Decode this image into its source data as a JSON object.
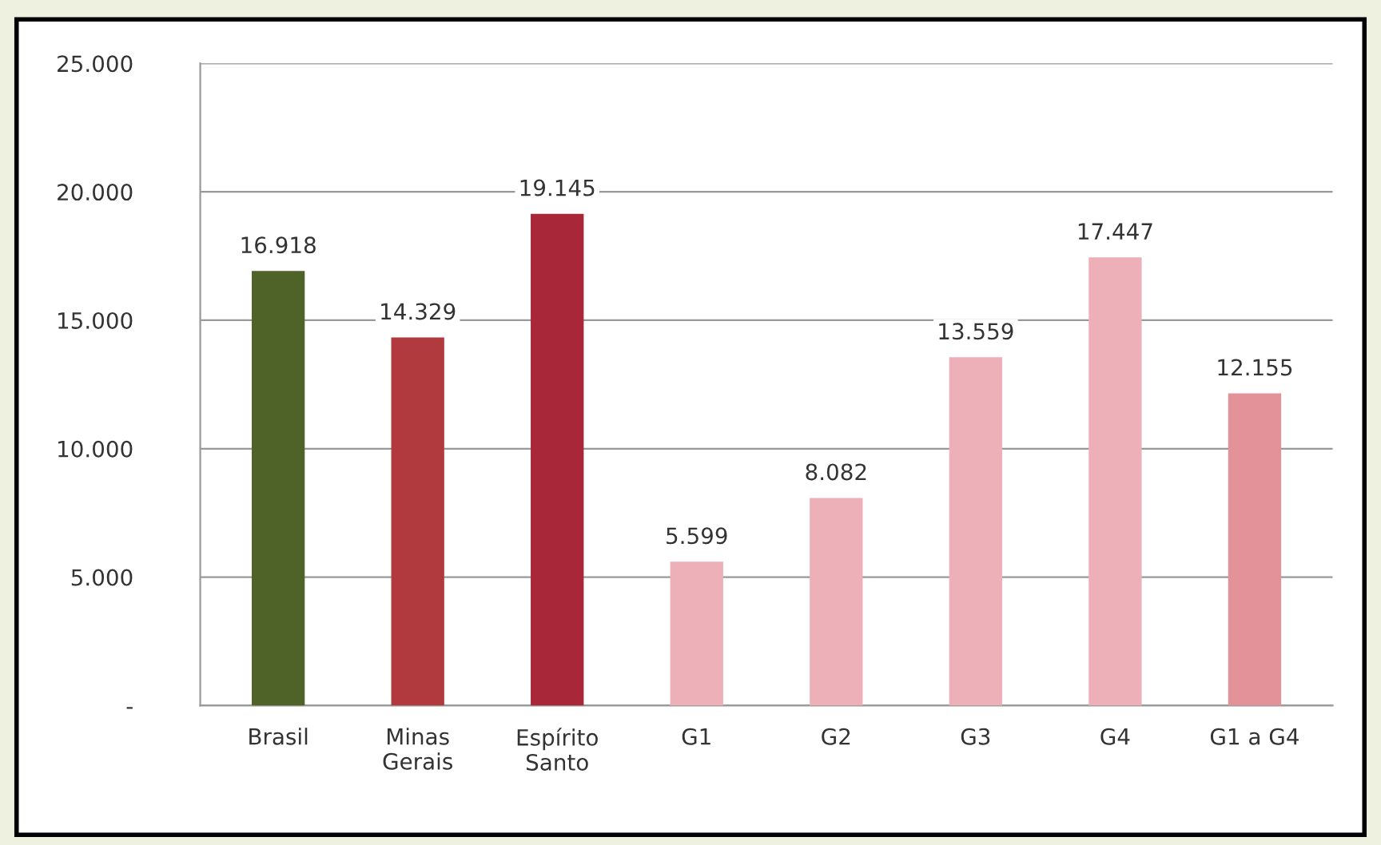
{
  "chart_data": {
    "type": "bar",
    "categories": [
      "Brasil",
      "Minas\nGerais",
      "Espírito\nSanto",
      "G1",
      "G2",
      "G3",
      "G4",
      "G1 a G4"
    ],
    "values": [
      16918,
      14329,
      19145,
      5599,
      8082,
      13559,
      17447,
      12155
    ],
    "colors": [
      "#4f6228",
      "#b03a3e",
      "#a8283a",
      "#eeb0b8",
      "#eeb0b8",
      "#eeb0b8",
      "#eeb0b8",
      "#e4929a"
    ],
    "value_labels": [
      "16.918",
      "14.329",
      "19.145",
      "5.599",
      "8.082",
      "13.559",
      "17.447",
      "12.155"
    ],
    "ylim": [
      0,
      25000
    ],
    "yticks": [
      {
        "value": 0,
        "label": "-"
      },
      {
        "value": 5000,
        "label": "5.000"
      },
      {
        "value": 10000,
        "label": "10.000"
      },
      {
        "value": 15000,
        "label": "15.000"
      },
      {
        "value": 20000,
        "label": "20.000"
      },
      {
        "value": 25000,
        "label": "25.000"
      }
    ],
    "grid": "y"
  }
}
